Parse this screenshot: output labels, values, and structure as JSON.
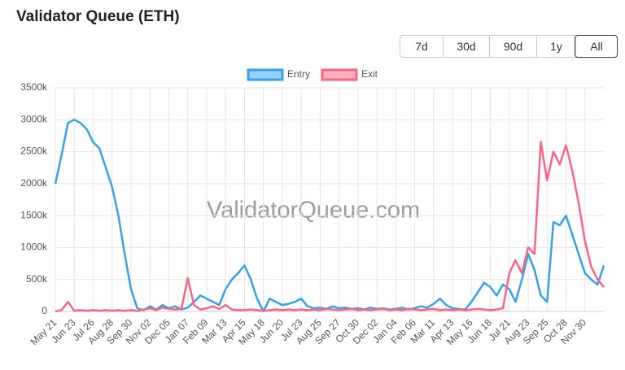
{
  "chart_data": {
    "type": "line",
    "title": "Validator Queue (ETH)",
    "watermark": "ValidatorQueue.com",
    "controls": {
      "buttons": [
        "7d",
        "30d",
        "90d",
        "1y",
        "All"
      ],
      "selected_index": 4
    },
    "categories": [
      "May 21",
      null,
      null,
      "Jun 23",
      null,
      null,
      "Jul 26",
      null,
      null,
      "Aug 28",
      null,
      null,
      "Sep 30",
      null,
      null,
      "Nov 02",
      null,
      null,
      "Dec 05",
      null,
      null,
      "Jan 07",
      null,
      null,
      "Feb 09",
      null,
      null,
      "Mar 13",
      null,
      null,
      "Apr 15",
      null,
      null,
      "May 18",
      null,
      null,
      "Jun 20",
      null,
      null,
      "Jul 23",
      null,
      null,
      "Aug 25",
      null,
      null,
      "Sep 27",
      null,
      null,
      "Oct 30",
      null,
      null,
      "Dec 02",
      null,
      null,
      "Jan 04",
      null,
      null,
      "Feb 06",
      null,
      null,
      "Mar 11",
      null,
      null,
      "Apr 13",
      null,
      null,
      "May 16",
      null,
      null,
      "Jun 18",
      null,
      null,
      "Jul 21",
      null,
      null,
      "Aug 23",
      null,
      null,
      "Sep 25",
      null,
      null,
      "Oct 28",
      null,
      null,
      "Nov 30",
      null,
      null,
      null
    ],
    "series": [
      {
        "name": "Entry",
        "color": "#36a2eb",
        "values": [
          2000000,
          2450000,
          2950000,
          3000000,
          2950000,
          2850000,
          2650000,
          2550000,
          2250000,
          1950000,
          1500000,
          900000,
          350000,
          50000,
          20000,
          80000,
          30000,
          100000,
          50000,
          80000,
          30000,
          60000,
          150000,
          250000,
          200000,
          150000,
          100000,
          350000,
          500000,
          600000,
          720000,
          500000,
          200000,
          0,
          200000,
          150000,
          100000,
          120000,
          150000,
          200000,
          80000,
          50000,
          60000,
          40000,
          80000,
          50000,
          60000,
          40000,
          50000,
          30000,
          60000,
          40000,
          50000,
          30000,
          40000,
          60000,
          30000,
          50000,
          80000,
          60000,
          120000,
          200000,
          100000,
          50000,
          40000,
          30000,
          150000,
          300000,
          450000,
          380000,
          250000,
          420000,
          350000,
          150000,
          500000,
          900000,
          650000,
          250000,
          150000,
          1400000,
          1350000,
          1500000,
          1200000,
          900000,
          600000,
          500000,
          420000,
          720000
        ]
      },
      {
        "name": "Exit",
        "color": "#ff6384",
        "values": [
          0,
          20000,
          150000,
          10000,
          20000,
          10000,
          20000,
          10000,
          20000,
          10000,
          20000,
          10000,
          20000,
          10000,
          30000,
          50000,
          20000,
          60000,
          40000,
          30000,
          40000,
          520000,
          100000,
          30000,
          50000,
          80000,
          40000,
          100000,
          30000,
          20000,
          20000,
          30000,
          20000,
          10000,
          20000,
          30000,
          20000,
          30000,
          20000,
          30000,
          20000,
          30000,
          20000,
          40000,
          30000,
          20000,
          30000,
          40000,
          20000,
          30000,
          20000,
          30000,
          40000,
          20000,
          30000,
          20000,
          40000,
          30000,
          20000,
          30000,
          40000,
          20000,
          30000,
          20000,
          30000,
          20000,
          30000,
          40000,
          30000,
          20000,
          30000,
          50000,
          600000,
          800000,
          600000,
          1000000,
          900000,
          2650000,
          2050000,
          2500000,
          2300000,
          2600000,
          2200000,
          1700000,
          1100000,
          700000,
          500000,
          380000
        ]
      }
    ],
    "ylim": [
      0,
      3500000
    ],
    "yticks": [
      0,
      {
        "value": 500000,
        "label": "500k"
      },
      {
        "value": 1000000,
        "label": "1000k"
      },
      {
        "value": 1500000,
        "label": "1500k"
      },
      {
        "value": 2000000,
        "label": "2000k"
      },
      {
        "value": 2500000,
        "label": "2500k"
      },
      {
        "value": 3000000,
        "label": "3000k"
      },
      {
        "value": 3500000,
        "label": "3500k"
      }
    ],
    "grid": true
  }
}
